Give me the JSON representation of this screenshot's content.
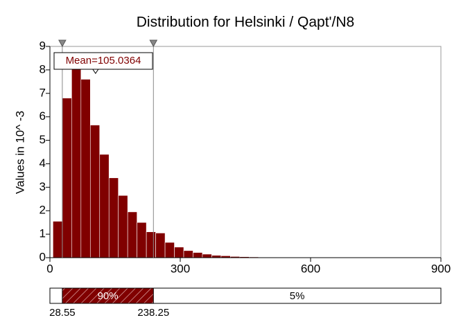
{
  "chart_data": {
    "type": "histogram",
    "title": "Distribution for Helsinki / Qapt'/N8",
    "y_label": "Values in 10^ -3",
    "bins": [
      7,
      28.5,
      50,
      71.5,
      93,
      114.5,
      136,
      157.5,
      179,
      200.5,
      222,
      243.5,
      265,
      286.5,
      308,
      329.5,
      351,
      372.5,
      394,
      415.5,
      437,
      458.5,
      480,
      501.5,
      523,
      544.5,
      566,
      587.5
    ],
    "counts": [
      1.55,
      6.8,
      8.2,
      7.6,
      5.65,
      4.4,
      3.4,
      2.65,
      1.95,
      1.5,
      1.1,
      1.05,
      0.65,
      0.45,
      0.3,
      0.22,
      0.15,
      0.1,
      0.08,
      0.05,
      0.04,
      0.03,
      0.02,
      0.02,
      0.01,
      0.01,
      0.005
    ],
    "color": "#800000",
    "xlim": [
      0,
      900
    ],
    "xticks": [
      0,
      300,
      600,
      900
    ],
    "ylim": [
      0,
      9
    ],
    "yticks": [
      0,
      1,
      2,
      3,
      4,
      5,
      6,
      7,
      8,
      9
    ],
    "mean": {
      "value": 105.0364,
      "label": "Mean=105.0364"
    },
    "delimiters": [
      28.55,
      238.25
    ],
    "band_percents": [
      {
        "value": 90,
        "label": "90%"
      },
      {
        "value": 5,
        "label": "5%"
      }
    ]
  }
}
